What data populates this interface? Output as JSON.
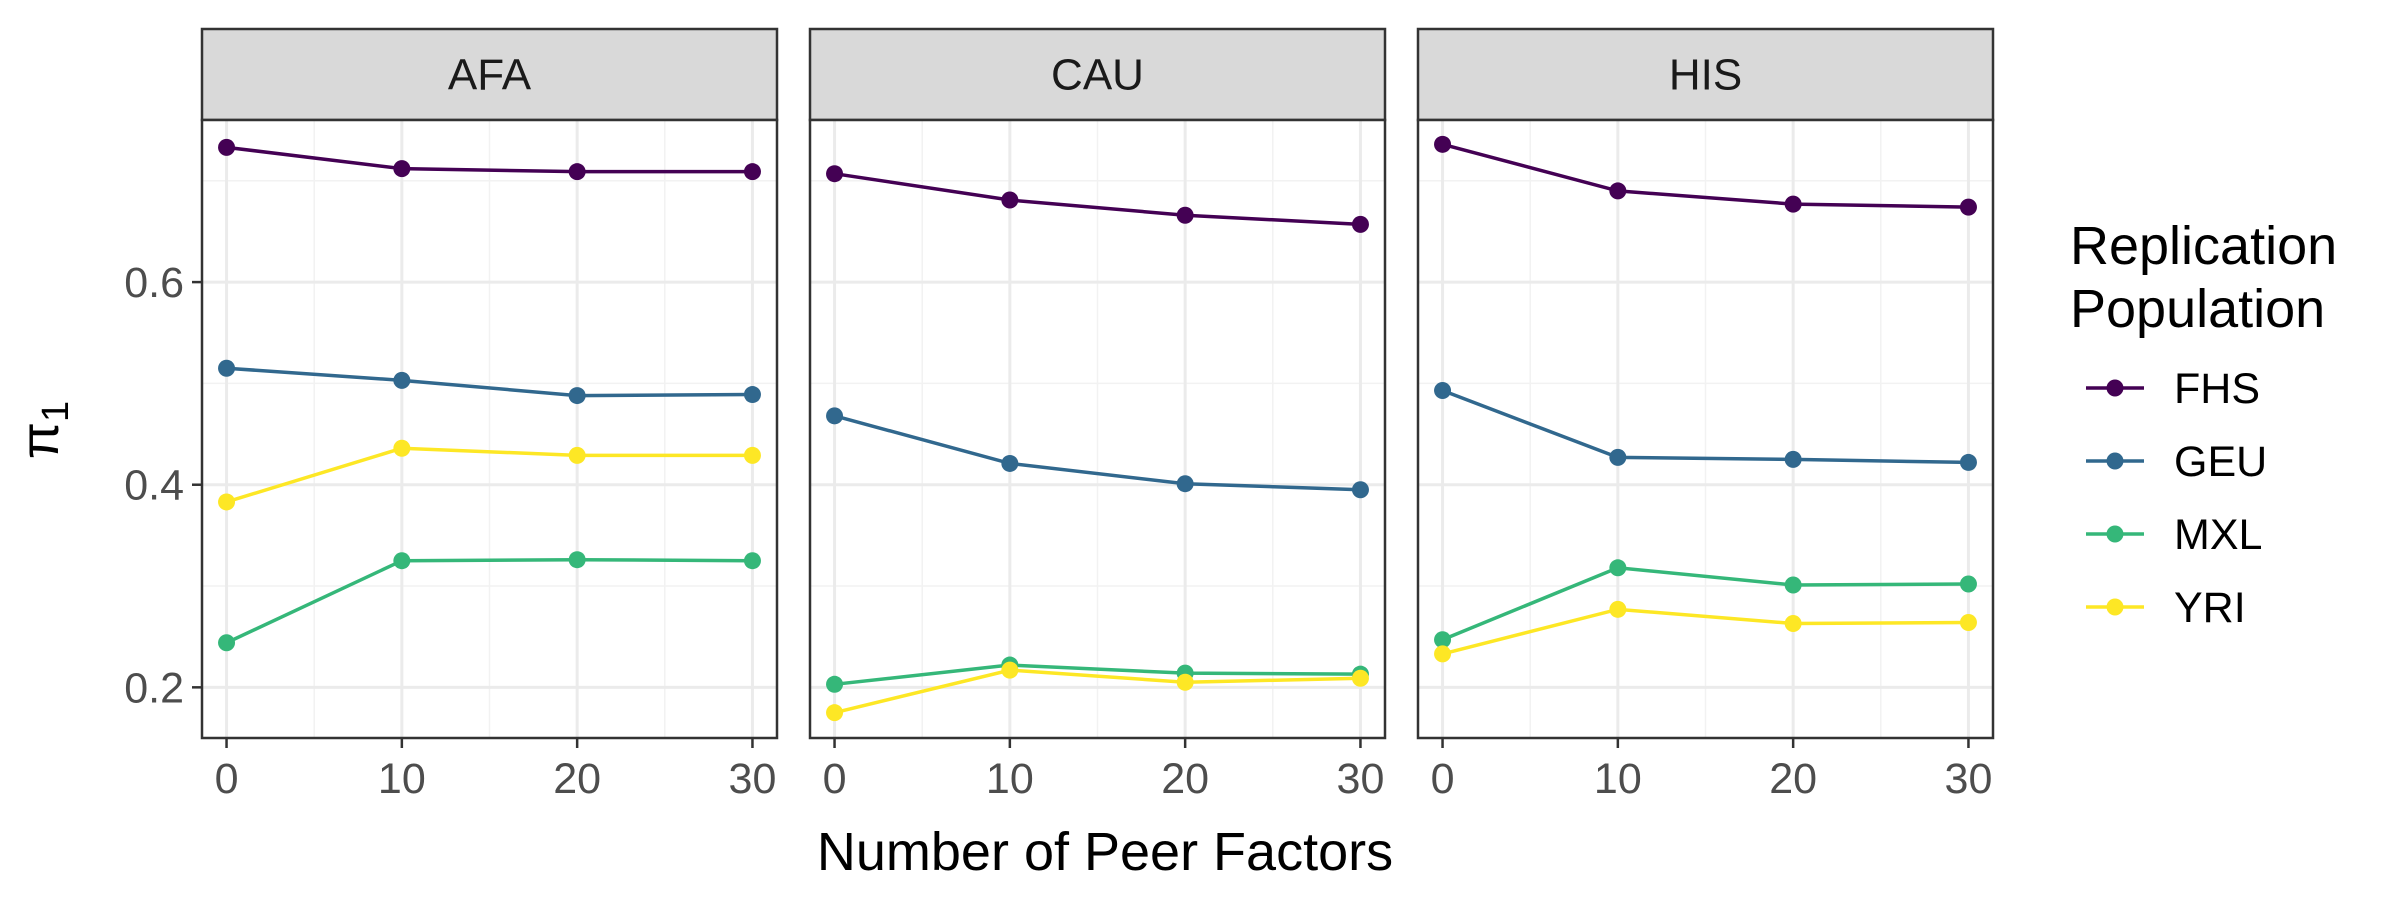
{
  "chart_data": {
    "type": "line",
    "facets": [
      "AFA",
      "CAU",
      "HIS"
    ],
    "x": [
      0,
      10,
      20,
      30
    ],
    "xlabel": "Number of Peer Factors",
    "ylabel": "π",
    "ylabel_subscript": "1",
    "xlim": [
      -1.4,
      31.4
    ],
    "ylim": [
      0.15,
      0.76
    ],
    "xticks": [
      0,
      10,
      20,
      30
    ],
    "yticks": [
      0.2,
      0.4,
      0.6
    ],
    "ytick_labels": [
      "0.2",
      "0.4",
      "0.6"
    ],
    "grid": true,
    "legend_placement": "right",
    "legend_title_lines": [
      "Replication",
      "Population"
    ],
    "series": [
      {
        "name": "FHS",
        "color": "#440154",
        "values": {
          "AFA": [
            0.733,
            0.712,
            0.709,
            0.709
          ],
          "CAU": [
            0.707,
            0.681,
            0.666,
            0.657
          ],
          "HIS": [
            0.736,
            0.69,
            0.677,
            0.674
          ]
        }
      },
      {
        "name": "GEU",
        "color": "#31688E",
        "values": {
          "AFA": [
            0.515,
            0.503,
            0.488,
            0.489
          ],
          "CAU": [
            0.468,
            0.421,
            0.401,
            0.395
          ],
          "HIS": [
            0.493,
            0.427,
            0.425,
            0.422
          ]
        }
      },
      {
        "name": "MXL",
        "color": "#35B779",
        "values": {
          "AFA": [
            0.244,
            0.325,
            0.326,
            0.325
          ],
          "CAU": [
            0.203,
            0.222,
            0.214,
            0.213
          ],
          "HIS": [
            0.247,
            0.318,
            0.301,
            0.302
          ]
        }
      },
      {
        "name": "YRI",
        "color": "#FDE725",
        "values": {
          "AFA": [
            0.383,
            0.436,
            0.429,
            0.429
          ],
          "CAU": [
            0.175,
            0.217,
            0.205,
            0.209
          ],
          "HIS": [
            0.233,
            0.277,
            0.263,
            0.264
          ]
        }
      }
    ]
  }
}
